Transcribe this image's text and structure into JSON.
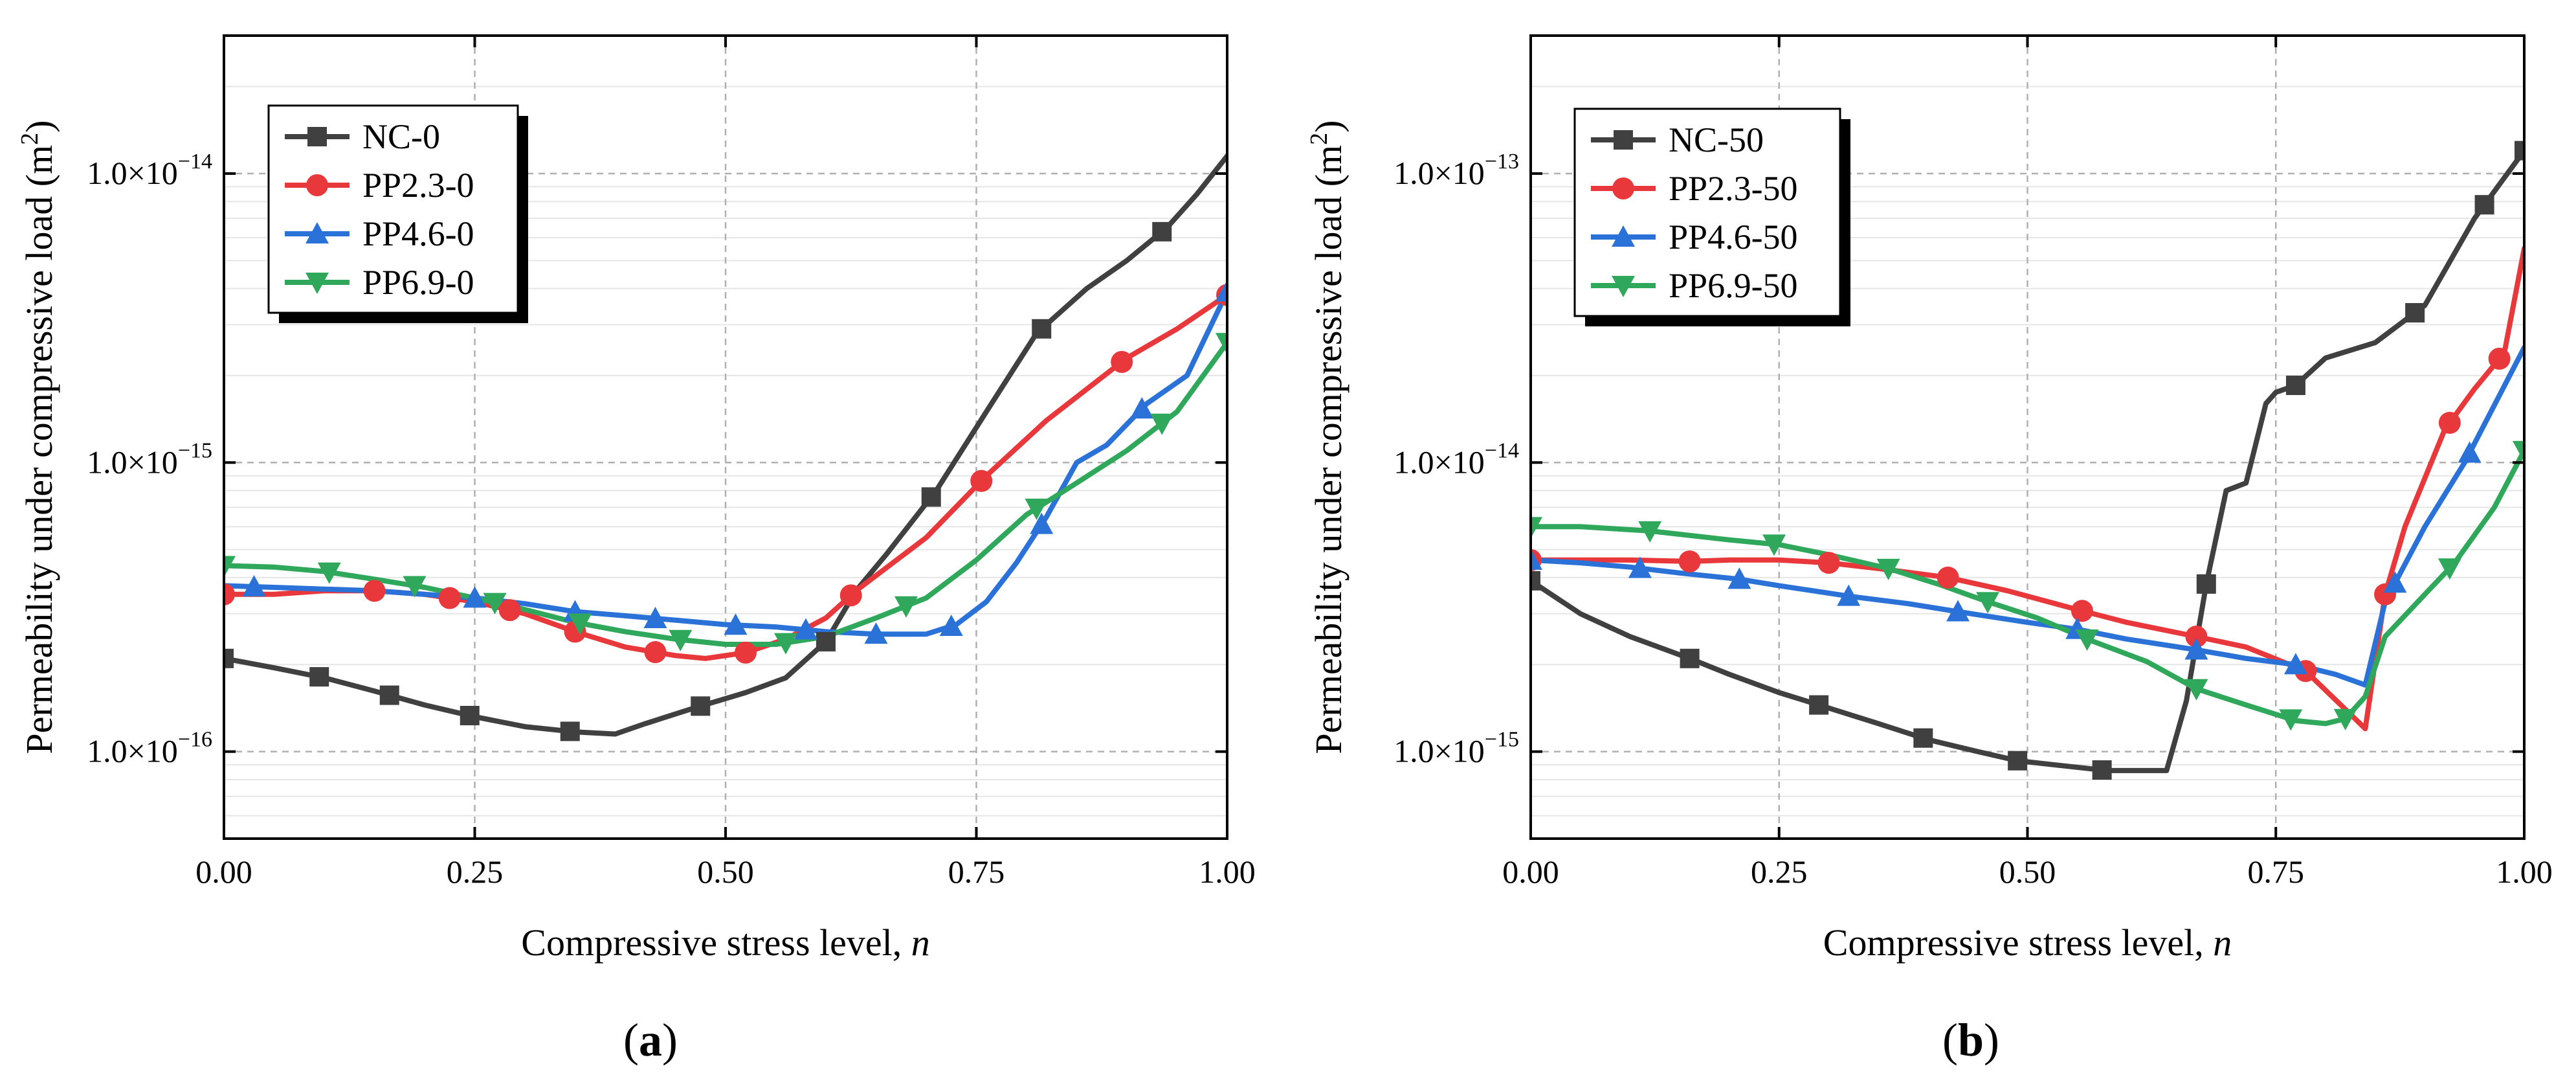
{
  "panels": [
    {
      "label_open": "(",
      "label_letter": "a",
      "label_close": ")",
      "chart_data": {
        "type": "line",
        "xlabel": "Compressive stress level, ",
        "xlabel_italic": "n",
        "ylabel": "Permeability under compressive load (m",
        "ylabel_sup": "2",
        "ylabel_end": ")",
        "xlim": [
          0,
          1
        ],
        "ylim": [
          5e-17,
          3e-14
        ],
        "yscale": "log",
        "grid": true,
        "legend_position": "top-left",
        "x_ticks": [
          0,
          0.25,
          0.5,
          0.75,
          1.0
        ],
        "x_tick_labels": [
          "0.00",
          "0.25",
          "0.50",
          "0.75",
          "1.00"
        ],
        "y_ticks": [
          1e-16,
          1e-15,
          1e-14
        ],
        "y_tick_labels": [
          {
            "base": "1.0×10",
            "exp": "−16"
          },
          {
            "base": "1.0×10",
            "exp": "−15"
          },
          {
            "base": "1.0×10",
            "exp": "−14"
          }
        ],
        "series": [
          {
            "name": "NC-0",
            "color": "#404040",
            "marker": "square",
            "x": [
              0,
              0.05,
              0.1,
              0.15,
              0.2,
              0.25,
              0.3,
              0.35,
              0.39,
              0.42,
              0.47,
              0.52,
              0.56,
              0.6,
              0.63,
              0.66,
              0.71,
              0.76,
              0.81,
              0.86,
              0.9,
              0.94,
              0.97,
              1.0
            ],
            "y": [
              2.1e-16,
              1.95e-16,
              1.8e-16,
              1.62e-16,
              1.45e-16,
              1.32e-16,
              1.22e-16,
              1.17e-16,
              1.15e-16,
              1.25e-16,
              1.42e-16,
              1.6e-16,
              1.8e-16,
              2.4e-16,
              3.6e-16,
              4.8e-16,
              8e-16,
              1.5e-15,
              2.8e-15,
              4e-15,
              5e-15,
              6.5e-15,
              8.5e-15,
              1.15e-14
            ],
            "marker_x": [
              0,
              0.095,
              0.165,
              0.245,
              0.345,
              0.475,
              0.6,
              0.705,
              0.815,
              0.935
            ]
          },
          {
            "name": "PP2.3-0",
            "color": "#e8383b",
            "marker": "circle",
            "x": [
              0,
              0.05,
              0.1,
              0.15,
              0.2,
              0.25,
              0.3,
              0.35,
              0.4,
              0.45,
              0.48,
              0.52,
              0.56,
              0.6,
              0.63,
              0.7,
              0.76,
              0.82,
              0.9,
              0.95,
              1.0
            ],
            "y": [
              3.5e-16,
              3.5e-16,
              3.6e-16,
              3.6e-16,
              3.5e-16,
              3.3e-16,
              3e-16,
              2.6e-16,
              2.3e-16,
              2.15e-16,
              2.1e-16,
              2.2e-16,
              2.45e-16,
              2.9e-16,
              3.6e-16,
              5.5e-16,
              9e-16,
              1.4e-15,
              2.3e-15,
              2.9e-15,
              3.8e-15
            ],
            "marker_x": [
              0,
              0.15,
              0.225,
              0.285,
              0.35,
              0.43,
              0.52,
              0.625,
              0.755,
              0.895,
              1.0
            ]
          },
          {
            "name": "PP4.6-0",
            "color": "#2b72d8",
            "marker": "triangle",
            "x": [
              0,
              0.05,
              0.1,
              0.15,
              0.2,
              0.25,
              0.3,
              0.35,
              0.4,
              0.45,
              0.5,
              0.55,
              0.6,
              0.65,
              0.7,
              0.73,
              0.76,
              0.79,
              0.82,
              0.85,
              0.88,
              0.92,
              0.96,
              1.0
            ],
            "y": [
              3.75e-16,
              3.7e-16,
              3.65e-16,
              3.6e-16,
              3.5e-16,
              3.4e-16,
              3.25e-16,
              3.05e-16,
              2.95e-16,
              2.85e-16,
              2.75e-16,
              2.7e-16,
              2.6e-16,
              2.55e-16,
              2.55e-16,
              2.75e-16,
              3.3e-16,
              4.5e-16,
              6.5e-16,
              1e-15,
              1.15e-15,
              1.6e-15,
              2e-15,
              3.9e-15
            ],
            "marker_x": [
              0.03,
              0.25,
              0.35,
              0.43,
              0.51,
              0.58,
              0.65,
              0.725,
              0.815,
              0.915,
              1.0
            ]
          },
          {
            "name": "PP6.9-0",
            "color": "#2fa85c",
            "marker": "triangle-down",
            "x": [
              0,
              0.05,
              0.1,
              0.15,
              0.2,
              0.25,
              0.3,
              0.35,
              0.4,
              0.45,
              0.5,
              0.55,
              0.6,
              0.65,
              0.7,
              0.75,
              0.8,
              0.85,
              0.9,
              0.95,
              1.0
            ],
            "y": [
              4.4e-16,
              4.35e-16,
              4.2e-16,
              3.95e-16,
              3.7e-16,
              3.4e-16,
              3.1e-16,
              2.8e-16,
              2.6e-16,
              2.45e-16,
              2.35e-16,
              2.35e-16,
              2.5e-16,
              2.9e-16,
              3.4e-16,
              4.6e-16,
              6.6e-16,
              8.5e-16,
              1.1e-15,
              1.5e-15,
              2.6e-15
            ],
            "marker_x": [
              0,
              0.105,
              0.19,
              0.27,
              0.355,
              0.455,
              0.56,
              0.68,
              0.81,
              0.935,
              1.0
            ]
          }
        ]
      }
    },
    {
      "label_open": "(",
      "label_letter": "b",
      "label_close": ")",
      "chart_data": {
        "type": "line",
        "xlabel": "Compressive stress level, ",
        "xlabel_italic": "n",
        "ylabel": "Permeability under compressive load (m",
        "ylabel_sup": "2",
        "ylabel_end": ")",
        "xlim": [
          0,
          1
        ],
        "ylim": [
          5e-16,
          3e-13
        ],
        "yscale": "log",
        "grid": true,
        "legend_position": "top-left",
        "x_ticks": [
          0,
          0.25,
          0.5,
          0.75,
          1.0
        ],
        "x_tick_labels": [
          "0.00",
          "0.25",
          "0.50",
          "0.75",
          "1.00"
        ],
        "y_ticks": [
          1e-15,
          1e-14,
          1e-13
        ],
        "y_tick_labels": [
          {
            "base": "1.0×10",
            "exp": "−15"
          },
          {
            "base": "1.0×10",
            "exp": "−14"
          },
          {
            "base": "1.0×10",
            "exp": "−13"
          }
        ],
        "series": [
          {
            "name": "NC-50",
            "color": "#404040",
            "marker": "square",
            "x": [
              0,
              0.05,
              0.1,
              0.16,
              0.2,
              0.25,
              0.29,
              0.35,
              0.4,
              0.45,
              0.49,
              0.54,
              0.58,
              0.62,
              0.64,
              0.66,
              0.68,
              0.7,
              0.72,
              0.74,
              0.75,
              0.77,
              0.8,
              0.85,
              0.9,
              0.95,
              1.0
            ],
            "y": [
              3.9e-15,
              3e-15,
              2.5e-15,
              2.1e-15,
              1.85e-15,
              1.6e-15,
              1.45e-15,
              1.25e-15,
              1.1e-15,
              1e-15,
              9.3e-16,
              8.9e-16,
              8.6e-16,
              8.6e-16,
              8.6e-16,
              1.5e-15,
              3.8e-15,
              8e-15,
              8.5e-15,
              1.6e-14,
              1.75e-14,
              1.85e-14,
              2.3e-14,
              2.6e-14,
              3.5e-14,
              7e-14,
              1.2e-13
            ],
            "marker_x": [
              0,
              0.16,
              0.29,
              0.395,
              0.49,
              0.575,
              0.68,
              0.77,
              0.89,
              0.96,
              1.0
            ]
          },
          {
            "name": "PP2.3-50",
            "color": "#e8383b",
            "marker": "circle",
            "x": [
              0,
              0.05,
              0.1,
              0.16,
              0.2,
              0.25,
              0.3,
              0.35,
              0.42,
              0.48,
              0.55,
              0.6,
              0.67,
              0.72,
              0.78,
              0.82,
              0.84,
              0.86,
              0.88,
              0.92,
              0.95,
              0.98,
              1.0
            ],
            "y": [
              4.6e-15,
              4.6e-15,
              4.6e-15,
              4.55e-15,
              4.6e-15,
              4.6e-15,
              4.5e-15,
              4.3e-15,
              4e-15,
              3.6e-15,
              3.1e-15,
              2.8e-15,
              2.5e-15,
              2.3e-15,
              1.9e-15,
              1.4e-15,
              1.2e-15,
              3.5e-15,
              6e-15,
              1.3e-14,
              1.8e-14,
              2.4e-14,
              5.5e-14
            ],
            "marker_x": [
              0,
              0.16,
              0.3,
              0.42,
              0.555,
              0.67,
              0.78,
              0.86,
              0.925,
              0.975
            ]
          },
          {
            "name": "PP4.6-50",
            "color": "#2b72d8",
            "marker": "triangle",
            "x": [
              0,
              0.05,
              0.1,
              0.15,
              0.21,
              0.25,
              0.32,
              0.38,
              0.43,
              0.5,
              0.55,
              0.6,
              0.67,
              0.72,
              0.77,
              0.81,
              0.84,
              0.86,
              0.9,
              0.94,
              1.0
            ],
            "y": [
              4.6e-15,
              4.5e-15,
              4.35e-15,
              4.15e-15,
              3.95e-15,
              3.75e-15,
              3.45e-15,
              3.25e-15,
              3.05e-15,
              2.8e-15,
              2.65e-15,
              2.45e-15,
              2.25e-15,
              2.1e-15,
              2e-15,
              1.85e-15,
              1.7e-15,
              3.3e-15,
              6e-15,
              1e-14,
              2.5e-14
            ],
            "marker_x": [
              0,
              0.11,
              0.21,
              0.32,
              0.43,
              0.55,
              0.67,
              0.77,
              0.87,
              0.945
            ]
          },
          {
            "name": "PP6.9-50",
            "color": "#2fa85c",
            "marker": "triangle-down",
            "x": [
              0,
              0.05,
              0.12,
              0.2,
              0.25,
              0.3,
              0.36,
              0.41,
              0.46,
              0.51,
              0.56,
              0.62,
              0.67,
              0.72,
              0.77,
              0.8,
              0.82,
              0.84,
              0.86,
              0.9,
              0.93,
              0.97,
              1.0
            ],
            "y": [
              6e-15,
              6e-15,
              5.8e-15,
              5.4e-15,
              5.2e-15,
              4.8e-15,
              4.3e-15,
              3.8e-15,
              3.3e-15,
              2.9e-15,
              2.45e-15,
              2.05e-15,
              1.65e-15,
              1.45e-15,
              1.28e-15,
              1.25e-15,
              1.3e-15,
              1.55e-15,
              2.5e-15,
              3.5e-15,
              4.5e-15,
              7e-15,
              1.1e-14
            ],
            "marker_x": [
              0,
              0.12,
              0.245,
              0.36,
              0.46,
              0.56,
              0.67,
              0.765,
              0.82,
              0.925,
              1.0
            ]
          }
        ]
      }
    }
  ]
}
